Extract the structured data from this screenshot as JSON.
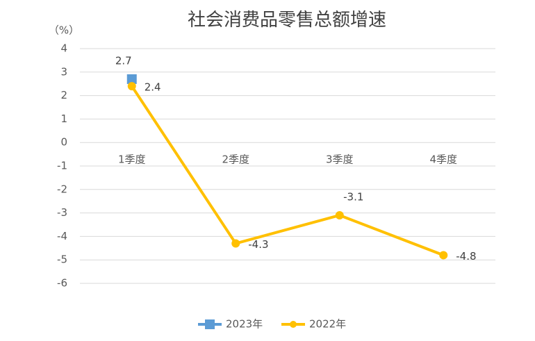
{
  "chart_data": {
    "type": "line",
    "title": "社会消费品零售总额增速",
    "unit": "（%）",
    "categories": [
      "1季度",
      "2季度",
      "3季度",
      "4季度"
    ],
    "series": [
      {
        "name": "2023年",
        "color": "#5b9bd5",
        "marker": "square",
        "values": [
          2.7,
          null,
          null,
          null
        ]
      },
      {
        "name": "2022年",
        "color": "#ffc000",
        "marker": "circle",
        "values": [
          2.4,
          -4.3,
          -3.1,
          -4.8
        ]
      }
    ],
    "ylim": [
      -6,
      4
    ],
    "yticks": [
      4,
      3,
      2,
      1,
      0,
      -1,
      -2,
      -3,
      -4,
      -5,
      -6
    ],
    "grid": true,
    "legend": "bottom"
  }
}
